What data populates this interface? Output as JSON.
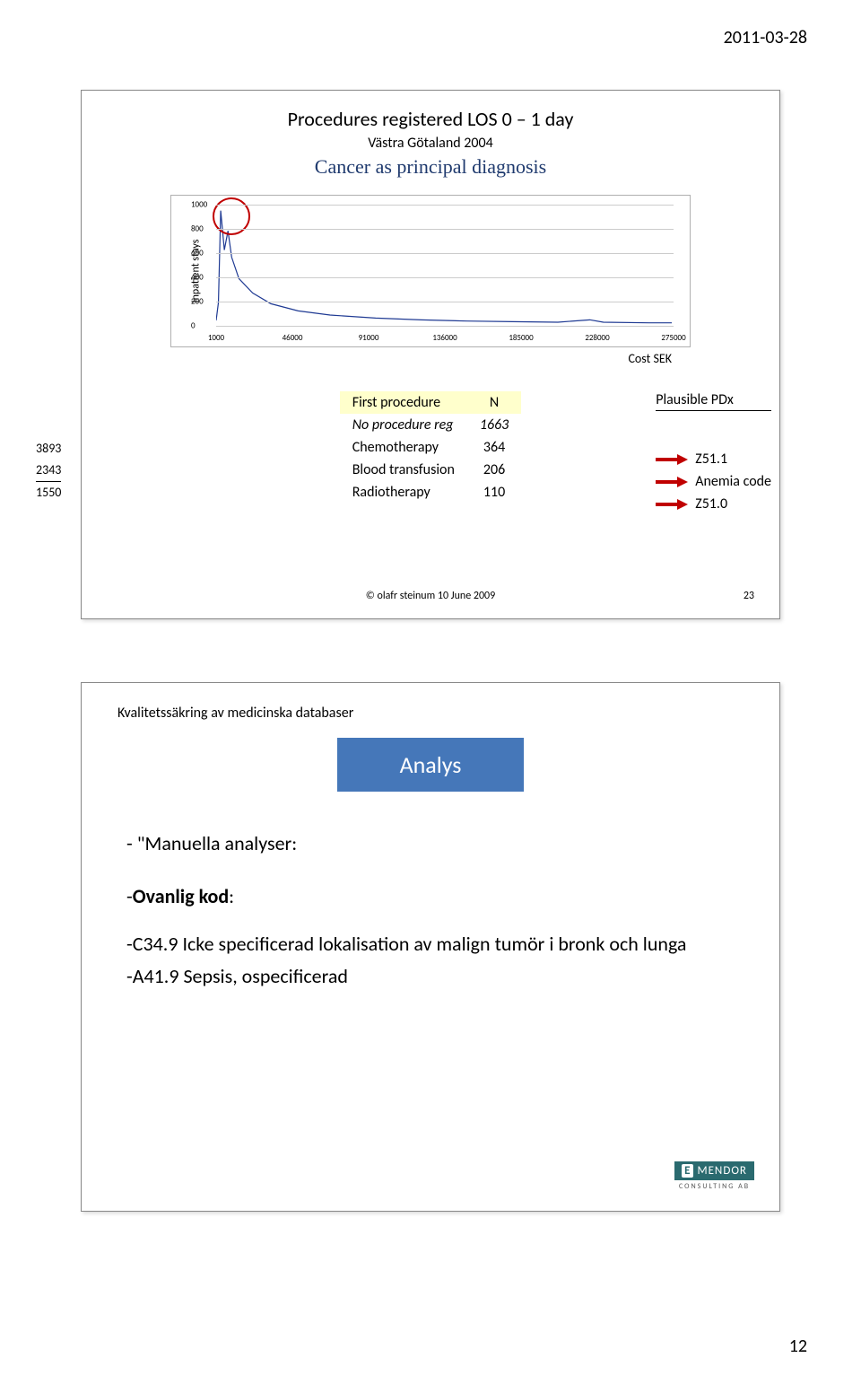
{
  "header_date": "2011-03-28",
  "page_number": "12",
  "slide1": {
    "title_line1": "Procedures registered LOS 0 – 1 day",
    "title_line2": "Västra Götaland 2004",
    "title_line3": "Cancer as principal diagnosis",
    "y_axis_label": "Inpatient stays",
    "cost_label": "Cost SEK",
    "y_ticks": [
      "0",
      "200",
      "400",
      "600",
      "800",
      "1000"
    ],
    "x_ticks": [
      "1000",
      "46000",
      "91000",
      "136000",
      "185000",
      "228000",
      "275000"
    ],
    "gridline_color": "#cccccc",
    "line_color": "#1f3a93",
    "circle_color": "#c00000",
    "left_numbers": [
      "3893",
      "2343",
      "1550"
    ],
    "table_header_col1": "First procedure",
    "table_header_col2": "N",
    "rows": [
      {
        "label": "No procedure reg",
        "n": "1663",
        "italic": true
      },
      {
        "label": "Chemotherapy",
        "n": "364"
      },
      {
        "label": "Blood transfusion",
        "n": "206"
      },
      {
        "label": "Radiotherapy",
        "n": "110"
      }
    ],
    "plausible_header": "Plausible PDx",
    "plausible_items": [
      "Z51.1",
      "Anemia code",
      "Z51.0"
    ],
    "arrow_color": "#c00000",
    "copyright": "© olafr steinum 10 June 2009",
    "slide_number": "23",
    "header_bg": "#ffffcc",
    "chart_points": [
      {
        "x": 0,
        "y": 30
      },
      {
        "x": 0.5,
        "y": 180
      },
      {
        "x": 1,
        "y": 950
      },
      {
        "x": 1.8,
        "y": 620
      },
      {
        "x": 2.6,
        "y": 780
      },
      {
        "x": 3.4,
        "y": 560
      },
      {
        "x": 5,
        "y": 380
      },
      {
        "x": 8,
        "y": 260
      },
      {
        "x": 12,
        "y": 170
      },
      {
        "x": 18,
        "y": 110
      },
      {
        "x": 25,
        "y": 75
      },
      {
        "x": 35,
        "y": 50
      },
      {
        "x": 45,
        "y": 35
      },
      {
        "x": 55,
        "y": 25
      },
      {
        "x": 65,
        "y": 20
      },
      {
        "x": 75,
        "y": 15
      },
      {
        "x": 82,
        "y": 35
      },
      {
        "x": 85,
        "y": 15
      },
      {
        "x": 95,
        "y": 10
      },
      {
        "x": 100,
        "y": 10
      }
    ],
    "chart_ymax": 1000,
    "chart_xmax": 100
  },
  "slide2": {
    "title": "Kvalitetssäkring av medicinska databaser",
    "box_label": "Analys",
    "box_bg": "#4577b9",
    "line1": "- \"Manuella analyser:",
    "line2_prefix": "-",
    "line2_bold": "Ovanlig kod",
    "line2_suffix": ":",
    "line3": "-C34.9 Icke specificerad lokalisation av malign tumör i bronk och lunga",
    "line4": "-A41.9 Sepsis, ospecificerad",
    "logo_name": "MENDOR",
    "logo_sub": "CONSULTING AB",
    "logo_bg": "#2a6a6f"
  }
}
